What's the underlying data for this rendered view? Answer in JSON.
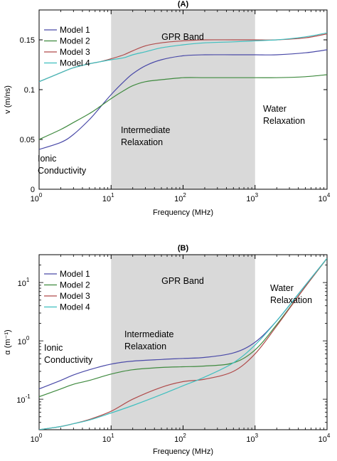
{
  "chart_data": [
    {
      "type": "line",
      "title": "(A)",
      "xlabel": "Frequency (MHz)",
      "ylabel": "v (m/ns)",
      "xscale": "log",
      "yscale": "linear",
      "xlim": [
        1,
        10000
      ],
      "ylim": [
        0,
        0.18
      ],
      "xticks": [
        {
          "value": 1,
          "base": "10",
          "exp": "0"
        },
        {
          "value": 10,
          "base": "10",
          "exp": "1"
        },
        {
          "value": 100,
          "base": "10",
          "exp": "2"
        },
        {
          "value": 1000,
          "base": "10",
          "exp": "3"
        },
        {
          "value": 10000,
          "base": "10",
          "exp": "4"
        }
      ],
      "yticks": [
        {
          "value": 0,
          "label": "0"
        },
        {
          "value": 0.05,
          "label": "0.05"
        },
        {
          "value": 0.1,
          "label": "0.1"
        },
        {
          "value": 0.15,
          "label": "0.15"
        }
      ],
      "band": {
        "x": [
          10,
          1000
        ],
        "color": "#d9d9d9",
        "label": "GPR Band"
      },
      "legend": {
        "position": "top-left"
      },
      "annotations": [
        {
          "lines": [
            "Ionic",
            "Conductivity"
          ]
        },
        {
          "lines": [
            "Intermediate",
            "Relaxation"
          ]
        },
        {
          "lines": [
            "Water",
            "Relaxation"
          ]
        }
      ],
      "series": [
        {
          "name": "Model 1",
          "color": "#4a4aa8",
          "x": [
            1,
            2,
            3,
            5,
            7,
            10,
            15,
            20,
            30,
            50,
            100,
            200,
            500,
            1000,
            2000,
            5000,
            10000
          ],
          "y": [
            0.04,
            0.047,
            0.055,
            0.07,
            0.082,
            0.095,
            0.108,
            0.116,
            0.124,
            0.13,
            0.134,
            0.135,
            0.135,
            0.135,
            0.135,
            0.137,
            0.14
          ]
        },
        {
          "name": "Model 2",
          "color": "#3f8a3f",
          "x": [
            1,
            2,
            3,
            5,
            7,
            10,
            15,
            20,
            30,
            50,
            100,
            200,
            500,
            1000,
            2000,
            5000,
            10000
          ],
          "y": [
            0.05,
            0.06,
            0.067,
            0.076,
            0.083,
            0.091,
            0.099,
            0.104,
            0.108,
            0.11,
            0.112,
            0.112,
            0.112,
            0.112,
            0.112,
            0.113,
            0.115
          ]
        },
        {
          "name": "Model 3",
          "color": "#b04a4a",
          "x": [
            1,
            2,
            3,
            5,
            7,
            10,
            15,
            20,
            30,
            50,
            100,
            200,
            500,
            1000,
            2000,
            5000,
            10000
          ],
          "y": [
            0.108,
            0.117,
            0.122,
            0.126,
            0.128,
            0.131,
            0.135,
            0.139,
            0.144,
            0.147,
            0.149,
            0.15,
            0.15,
            0.15,
            0.15,
            0.152,
            0.156
          ]
        },
        {
          "name": "Model 4",
          "color": "#3fbfbf",
          "x": [
            1,
            2,
            3,
            5,
            7,
            10,
            15,
            20,
            30,
            50,
            100,
            200,
            500,
            1000,
            2000,
            5000,
            10000
          ],
          "y": [
            0.108,
            0.117,
            0.122,
            0.126,
            0.128,
            0.13,
            0.132,
            0.135,
            0.138,
            0.142,
            0.145,
            0.147,
            0.148,
            0.149,
            0.15,
            0.153,
            0.157
          ]
        }
      ]
    },
    {
      "type": "line",
      "title": "(B)",
      "xlabel": "Frequency (MHz)",
      "ylabel": "α (m⁻¹)",
      "xscale": "log",
      "yscale": "log",
      "xlim": [
        1,
        10000
      ],
      "ylim": [
        0.03,
        30
      ],
      "xticks": [
        {
          "value": 1,
          "base": "10",
          "exp": "0"
        },
        {
          "value": 10,
          "base": "10",
          "exp": "1"
        },
        {
          "value": 100,
          "base": "10",
          "exp": "2"
        },
        {
          "value": 1000,
          "base": "10",
          "exp": "3"
        },
        {
          "value": 10000,
          "base": "10",
          "exp": "4"
        }
      ],
      "yticks": [
        {
          "value": 0.1,
          "base": "10",
          "exp": "-1"
        },
        {
          "value": 1,
          "base": "10",
          "exp": "0"
        },
        {
          "value": 10,
          "base": "10",
          "exp": "1"
        }
      ],
      "band": {
        "x": [
          10,
          1000
        ],
        "color": "#d9d9d9",
        "label": "GPR Band"
      },
      "legend": {
        "position": "top-left"
      },
      "annotations": [
        {
          "lines": [
            "Ionic",
            "Conductivity"
          ]
        },
        {
          "lines": [
            "Intermediate",
            "Relaxation"
          ]
        },
        {
          "lines": [
            "Water",
            "Relaxation"
          ]
        }
      ],
      "series": [
        {
          "name": "Model 1",
          "color": "#4a4aa8",
          "x": [
            1,
            2,
            3,
            5,
            10,
            20,
            50,
            100,
            200,
            500,
            1000,
            2000,
            5000,
            10000
          ],
          "y": [
            0.15,
            0.21,
            0.26,
            0.32,
            0.4,
            0.45,
            0.48,
            0.5,
            0.52,
            0.62,
            0.95,
            2.2,
            9.0,
            26
          ]
        },
        {
          "name": "Model 2",
          "color": "#3f8a3f",
          "x": [
            1,
            2,
            3,
            5,
            10,
            20,
            50,
            100,
            200,
            500,
            1000,
            2000,
            5000,
            10000
          ],
          "y": [
            0.11,
            0.15,
            0.18,
            0.21,
            0.27,
            0.32,
            0.35,
            0.36,
            0.37,
            0.42,
            0.7,
            1.9,
            8.5,
            26
          ]
        },
        {
          "name": "Model 3",
          "color": "#b04a4a",
          "x": [
            1,
            2,
            3,
            5,
            10,
            20,
            50,
            100,
            200,
            500,
            1000,
            2000,
            5000,
            10000
          ],
          "y": [
            0.03,
            0.034,
            0.038,
            0.045,
            0.062,
            0.1,
            0.16,
            0.2,
            0.22,
            0.3,
            0.6,
            1.8,
            8.5,
            26
          ]
        },
        {
          "name": "Model 4",
          "color": "#3fbfbf",
          "x": [
            1,
            2,
            3,
            5,
            10,
            20,
            50,
            100,
            200,
            500,
            1000,
            2000,
            5000,
            10000
          ],
          "y": [
            0.03,
            0.034,
            0.038,
            0.044,
            0.058,
            0.078,
            0.12,
            0.17,
            0.24,
            0.42,
            0.85,
            2.2,
            9.0,
            26
          ]
        }
      ]
    }
  ]
}
